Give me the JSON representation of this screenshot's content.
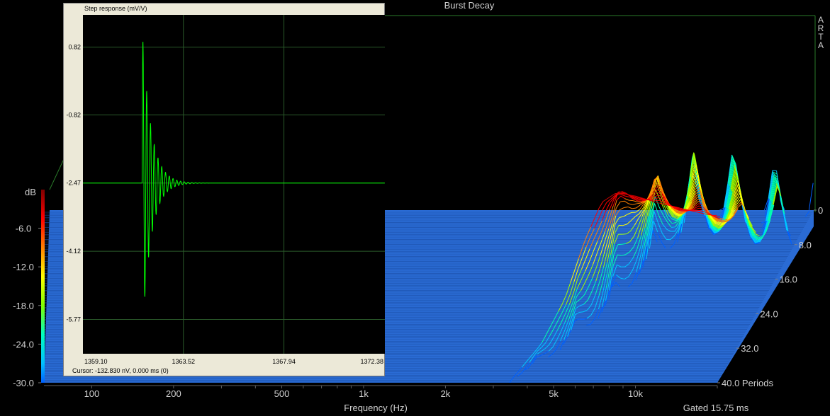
{
  "chart_data": [
    {
      "type": "waterfall",
      "title": "Burst Decay",
      "watermark": "ARTA",
      "xlabel": "Frequency (Hz)",
      "x_scale": "log",
      "xlim": [
        70,
        20000
      ],
      "x_ticks": [
        {
          "value": 100,
          "label": "100"
        },
        {
          "value": 200,
          "label": "200"
        },
        {
          "value": 500,
          "label": "500"
        },
        {
          "value": 1000,
          "label": "1k"
        },
        {
          "value": 2000,
          "label": "2k"
        },
        {
          "value": 5000,
          "label": "5k"
        },
        {
          "value": 10000,
          "label": "10k"
        }
      ],
      "ylabel": "dB",
      "ylim": [
        -30,
        0
      ],
      "y_ticks": [
        "-6.0",
        "-12.0",
        "-18.0",
        "-24.0",
        "-30.0"
      ],
      "z_axis_label": "Periods",
      "z_ticks": [
        "0",
        "8.0",
        "16.0",
        "24.0",
        "32.0",
        "40.0 Periods"
      ],
      "zlim": [
        0,
        40
      ],
      "colormap": [
        "#0060ff",
        "#00c8ff",
        "#00ffb0",
        "#a0ff00",
        "#ffff00",
        "#ff8000",
        "#ff0000",
        "#c00000"
      ],
      "footer_note": "Gated 15.75 ms",
      "front_response_db": [
        {
          "freq": 3500,
          "db": -29.5
        },
        {
          "freq": 4500,
          "db": -24
        },
        {
          "freq": 5500,
          "db": -17
        },
        {
          "freq": 6500,
          "db": -8
        },
        {
          "freq": 7500,
          "db": -2
        },
        {
          "freq": 8500,
          "db": -0.5
        },
        {
          "freq": 10000,
          "db": -1
        },
        {
          "freq": 12000,
          "db": -2
        },
        {
          "freq": 15000,
          "db": -3
        },
        {
          "freq": 19000,
          "db": -4
        }
      ]
    },
    {
      "type": "line",
      "title": "Step response (mV/V)",
      "xlim": [
        1359.1,
        1372.38
      ],
      "x_ticks": [
        "1359.10",
        "1363.52",
        "1367.94",
        "1372.38"
      ],
      "ylim": [
        -6.6,
        1.6
      ],
      "y_ticks": [
        "0.82",
        "-0.82",
        "-2.47",
        "-4.12",
        "-5.77"
      ],
      "grid": true,
      "line_color": "#00ff00",
      "cursor_text": "Cursor: -132.830 nV,   0.000 ms  (0)"
    }
  ]
}
